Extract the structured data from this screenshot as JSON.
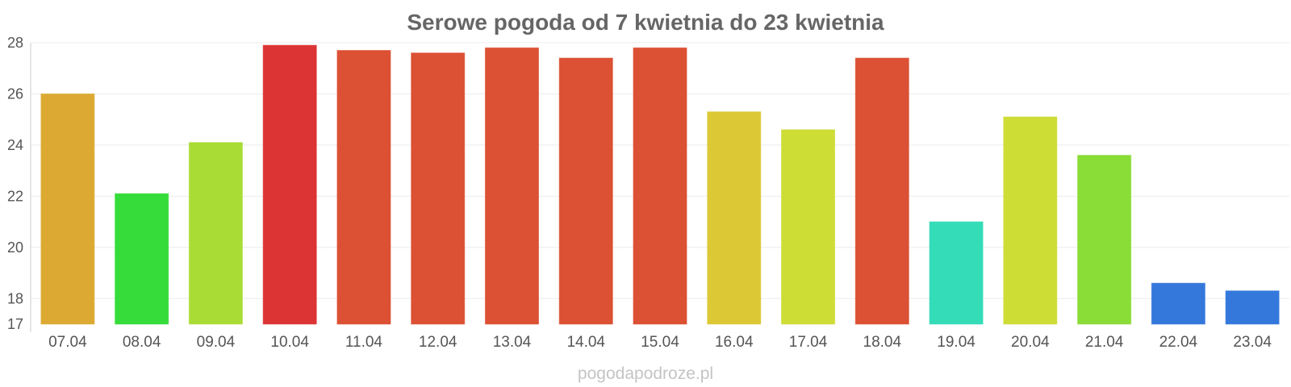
{
  "chart_data": {
    "type": "bar",
    "title": "Serowe pogoda od 7 kwietnia do 23 kwietnia",
    "xlabel": "",
    "ylabel": "",
    "categories": [
      "07.04",
      "08.04",
      "09.04",
      "10.04",
      "11.04",
      "12.04",
      "13.04",
      "14.04",
      "15.04",
      "16.04",
      "17.04",
      "18.04",
      "19.04",
      "20.04",
      "21.04",
      "22.04",
      "23.04"
    ],
    "values": [
      26.0,
      22.1,
      24.1,
      27.9,
      27.7,
      27.6,
      27.8,
      27.4,
      27.8,
      25.3,
      24.6,
      27.4,
      21.0,
      25.1,
      23.6,
      18.6,
      18.3
    ],
    "colors": [
      "#dcaa33",
      "#36dc3a",
      "#aadc36",
      "#dc3434",
      "#dc5034",
      "#dc5034",
      "#dc5034",
      "#dc5034",
      "#dc5034",
      "#dcc834",
      "#cedc36",
      "#dc5034",
      "#34dcb8",
      "#cedc36",
      "#8adc36",
      "#3478dc",
      "#3478dc"
    ],
    "ylim": [
      17,
      28
    ],
    "yticks": [
      "17",
      "18",
      "20",
      "22",
      "24",
      "26",
      "28"
    ],
    "grid": true,
    "legend": "none"
  },
  "watermark": "pogodapodroze.pl"
}
